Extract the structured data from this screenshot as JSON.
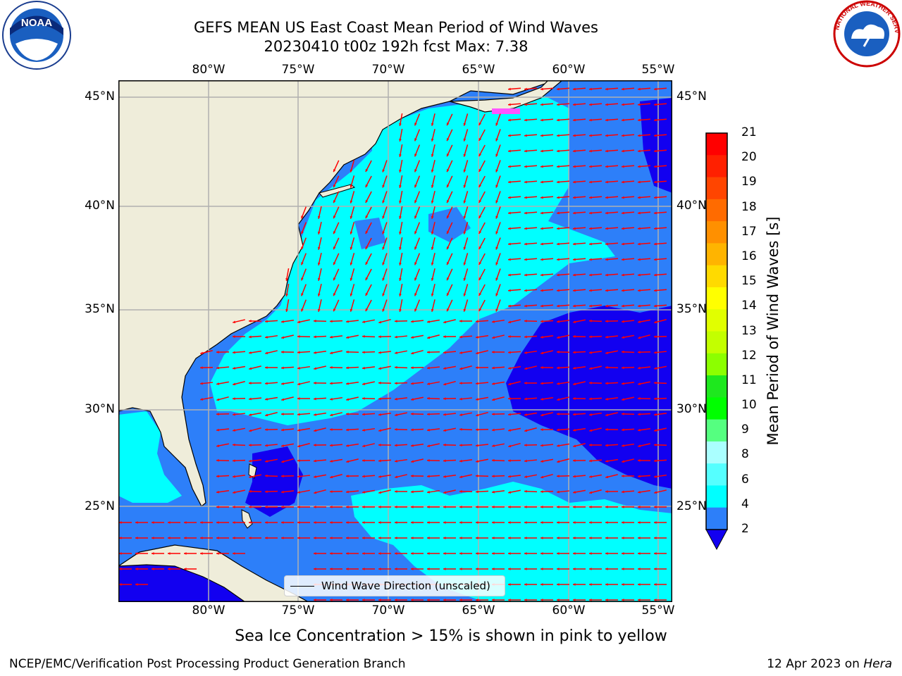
{
  "header": {
    "title_line1": "GEFS MEAN US East Coast Mean Period of Wind Waves",
    "title_line2": "20230410 t00z 192h fcst   Max: 7.38"
  },
  "logos": {
    "left": "NOAA",
    "right": "NATIONAL WEATHER SERVICE"
  },
  "map": {
    "lon_labels": [
      "80°W",
      "75°W",
      "70°W",
      "65°W",
      "60°W",
      "55°W"
    ],
    "lat_labels": [
      "45°N",
      "40°N",
      "35°N",
      "30°N",
      "25°N"
    ],
    "legend_label": "Wind Wave Direction (unscaled)",
    "colors": {
      "land": "#efedda",
      "ocean_2_4": "#2d7ff9",
      "ocean_4_6": "#00ffff",
      "ocean_lt2": "#1200f0",
      "arrow": "#ff0000",
      "grid": "#b0b0b0"
    }
  },
  "colorbar": {
    "title": "Mean Period of Wind Waves [s]",
    "labels": [
      "21",
      "20",
      "19",
      "18",
      "17",
      "16",
      "15",
      "14",
      "13",
      "12",
      "11",
      "10",
      "9",
      "8",
      "6",
      "4",
      "2"
    ],
    "colors": [
      "#ff0000",
      "#ff2000",
      "#ff4500",
      "#ff6b00",
      "#ff9000",
      "#ffb400",
      "#ffda00",
      "#ffff00",
      "#e1ff00",
      "#c3ff00",
      "#8cff00",
      "#1ee81e",
      "#00ff00",
      "#55ff80",
      "#aaffff",
      "#55ffff",
      "#00ffff",
      "#2d7ff9"
    ]
  },
  "footer": {
    "sea_ice_note": "Sea Ice Concentration > 15% is shown in pink to yellow",
    "left": "NCEP/EMC/Verification Post Processing Product Generation Branch",
    "right_date": "12 Apr 2023 on ",
    "right_host": "Hera"
  }
}
